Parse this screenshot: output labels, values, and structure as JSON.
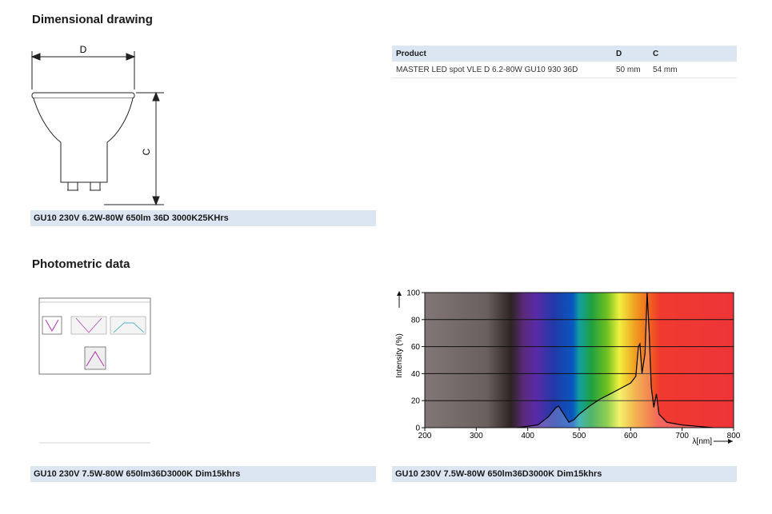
{
  "dimensional": {
    "title": "Dimensional drawing",
    "label_d": "D",
    "label_c": "C",
    "caption": "GU10 230V 6.2W-80W 650lm 36D 3000K25KHrs"
  },
  "table": {
    "header": [
      "Product",
      "D",
      "C"
    ],
    "rows": [
      [
        "MASTER LED spot VLE D 6.2-80W GU10 930 36D",
        "50 mm",
        "54 mm"
      ]
    ]
  },
  "photometric": {
    "title": "Photometric data",
    "caption_left": "GU10 230V 7.5W-80W 650lm36D3000K Dim15khrs",
    "caption_right": "GU10 230V 7.5W-80W 650lm36D3000K Dim15khrs"
  },
  "chart_data": {
    "type": "line",
    "y_label": "Intensity (%)",
    "x_label": "λ[nm]",
    "x": [
      380,
      420,
      440,
      455,
      460,
      470,
      480,
      490,
      500,
      520,
      540,
      560,
      580,
      600,
      610,
      615,
      618,
      622,
      628,
      632,
      636,
      640,
      645,
      650,
      655,
      670,
      700,
      730,
      760
    ],
    "values": [
      0,
      2,
      8,
      15,
      16,
      10,
      4,
      6,
      10,
      16,
      21,
      25,
      29,
      33,
      38,
      60,
      62,
      40,
      55,
      100,
      70,
      30,
      15,
      25,
      10,
      4,
      2,
      1,
      0
    ],
    "color": "#000000",
    "xlim": [
      200,
      800
    ],
    "ylim": [
      0,
      100
    ],
    "xticks": [
      200,
      300,
      400,
      500,
      600,
      700,
      800
    ],
    "yticks": [
      0,
      20,
      40,
      60,
      80,
      100
    ],
    "grid": true
  }
}
